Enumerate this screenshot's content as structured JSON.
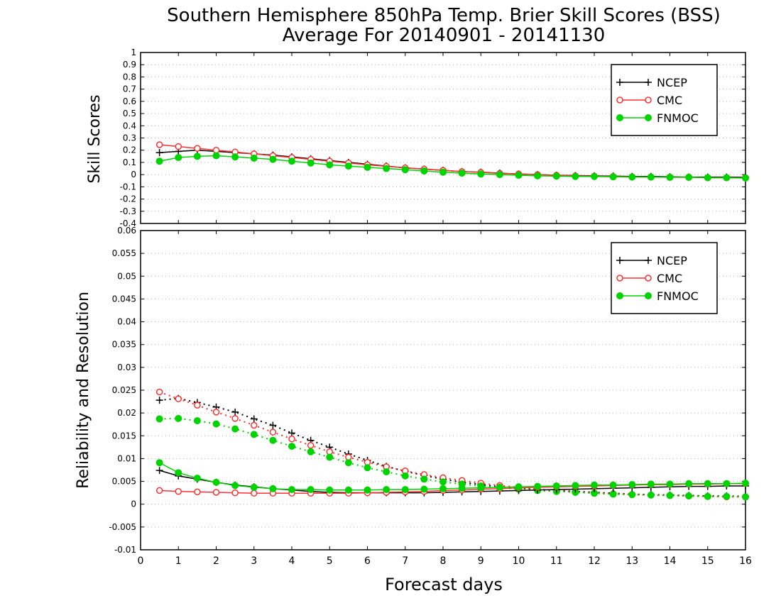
{
  "title_line1": "Southern Hemisphere 850hPa Temp. Brier Skill Scores (BSS)",
  "title_line2": "Average For 20140901 - 20141130",
  "xlabel": "Forecast days",
  "colors": {
    "NCEP": "#000000",
    "CMC": "#ff3030",
    "FNMOC": "#00d400"
  },
  "chart_data": [
    {
      "type": "line",
      "ylabel": "Skill Scores",
      "xlim": [
        0,
        16
      ],
      "ylim": [
        -0.4,
        1
      ],
      "x_ticks": [
        "0",
        "1",
        "2",
        "3",
        "4",
        "5",
        "6",
        "7",
        "8",
        "9",
        "10",
        "11",
        "12",
        "13",
        "14",
        "15",
        "16"
      ],
      "y_ticks": [
        "-0.4",
        "-0.3",
        "-0.2",
        "-0.1",
        "0",
        "0.1",
        "0.2",
        "0.3",
        "0.4",
        "0.5",
        "0.6",
        "0.7",
        "0.8",
        "0.9",
        "1"
      ],
      "grid": true,
      "legend": [
        "NCEP",
        "CMC",
        "FNMOC"
      ],
      "legend_position": "top-right",
      "x": [
        0.5,
        1,
        1.5,
        2,
        2.5,
        3,
        3.5,
        4,
        4.5,
        5,
        5.5,
        6,
        6.5,
        7,
        7.5,
        8,
        8.5,
        9,
        9.5,
        10,
        10.5,
        11,
        11.5,
        12,
        12.5,
        13,
        13.5,
        14,
        14.5,
        15,
        15.5,
        16
      ],
      "series": [
        {
          "name": "NCEP",
          "marker": "plus",
          "style": "solid",
          "values": [
            0.18,
            0.19,
            0.2,
            0.19,
            0.18,
            0.17,
            0.16,
            0.145,
            0.13,
            0.115,
            0.1,
            0.085,
            0.07,
            0.055,
            0.045,
            0.035,
            0.025,
            0.02,
            0.012,
            0.005,
            0.0,
            -0.005,
            -0.008,
            -0.01,
            -0.012,
            -0.015,
            -0.015,
            -0.018,
            -0.02,
            -0.02,
            -0.02,
            -0.022
          ]
        },
        {
          "name": "CMC",
          "marker": "open-circle",
          "style": "solid",
          "values": [
            0.245,
            0.23,
            0.215,
            0.2,
            0.185,
            0.17,
            0.155,
            0.14,
            0.125,
            0.11,
            0.095,
            0.08,
            0.068,
            0.055,
            0.045,
            0.035,
            0.025,
            0.018,
            0.01,
            0.005,
            0.0,
            -0.005,
            -0.01,
            -0.012,
            -0.015,
            -0.018,
            -0.02,
            -0.022,
            -0.022,
            -0.025,
            -0.025,
            -0.025
          ]
        },
        {
          "name": "FNMOC",
          "marker": "filled-circle",
          "style": "solid",
          "values": [
            0.11,
            0.14,
            0.15,
            0.155,
            0.145,
            0.135,
            0.125,
            0.11,
            0.095,
            0.08,
            0.07,
            0.06,
            0.05,
            0.04,
            0.03,
            0.02,
            0.012,
            0.005,
            0.0,
            -0.005,
            -0.01,
            -0.012,
            -0.015,
            -0.015,
            -0.018,
            -0.02,
            -0.02,
            -0.022,
            -0.022,
            -0.025,
            -0.025,
            -0.028
          ]
        }
      ]
    },
    {
      "type": "line",
      "ylabel": "Reliability and Resolution",
      "xlim": [
        0,
        16
      ],
      "ylim": [
        -0.01,
        0.06
      ],
      "x_ticks": [
        "0",
        "1",
        "2",
        "3",
        "4",
        "5",
        "6",
        "7",
        "8",
        "9",
        "10",
        "11",
        "12",
        "13",
        "14",
        "15",
        "16"
      ],
      "y_ticks": [
        "-0.01",
        "-0.005",
        "0",
        "0.005",
        "0.01",
        "0.015",
        "0.02",
        "0.025",
        "0.03",
        "0.035",
        "0.04",
        "0.045",
        "0.05",
        "0.055",
        "0.06"
      ],
      "grid": true,
      "legend": [
        "NCEP",
        "CMC",
        "FNMOC"
      ],
      "legend_position": "top-right",
      "x": [
        0.5,
        1,
        1.5,
        2,
        2.5,
        3,
        3.5,
        4,
        4.5,
        5,
        5.5,
        6,
        6.5,
        7,
        7.5,
        8,
        8.5,
        9,
        9.5,
        10,
        10.5,
        11,
        11.5,
        12,
        12.5,
        13,
        13.5,
        14,
        14.5,
        15,
        15.5,
        16
      ],
      "series": [
        {
          "name": "NCEP",
          "role": "resolution",
          "marker": "plus",
          "style": "dotted",
          "values": [
            0.0228,
            0.0232,
            0.0223,
            0.0213,
            0.0202,
            0.0187,
            0.0173,
            0.0156,
            0.014,
            0.0125,
            0.011,
            0.0096,
            0.0083,
            0.0072,
            0.0063,
            0.0055,
            0.0048,
            0.0043,
            0.0038,
            0.0035,
            0.0032,
            0.003,
            0.0028,
            0.0026,
            0.0024,
            0.0022,
            0.0021,
            0.002,
            0.0019,
            0.0018,
            0.0018,
            0.0017
          ]
        },
        {
          "name": "CMC",
          "role": "resolution",
          "marker": "open-circle",
          "style": "dotted",
          "values": [
            0.0246,
            0.0231,
            0.0217,
            0.0202,
            0.0188,
            0.0173,
            0.0158,
            0.0143,
            0.0129,
            0.0115,
            0.0103,
            0.0092,
            0.0082,
            0.0073,
            0.0065,
            0.0058,
            0.0052,
            0.0046,
            0.0041,
            0.0037,
            0.0033,
            0.003,
            0.0027,
            0.0025,
            0.0023,
            0.0021,
            0.002,
            0.0019,
            0.0018,
            0.0017,
            0.0016,
            0.0016
          ]
        },
        {
          "name": "FNMOC",
          "role": "resolution",
          "marker": "filled-circle",
          "style": "dotted",
          "values": [
            0.0187,
            0.0188,
            0.0183,
            0.0176,
            0.0165,
            0.0153,
            0.014,
            0.0127,
            0.0115,
            0.0103,
            0.0091,
            0.008,
            0.0071,
            0.0062,
            0.0055,
            0.0049,
            0.0044,
            0.004,
            0.0036,
            0.0033,
            0.003,
            0.0028,
            0.0026,
            0.0024,
            0.0022,
            0.0021,
            0.002,
            0.0019,
            0.0018,
            0.0017,
            0.0017,
            0.0016
          ]
        },
        {
          "name": "NCEP",
          "role": "reliability",
          "marker": "plus",
          "style": "solid",
          "values": [
            0.0074,
            0.0062,
            0.0055,
            0.0048,
            0.0042,
            0.0038,
            0.0034,
            0.0031,
            0.0028,
            0.0026,
            0.0025,
            0.0025,
            0.0025,
            0.0025,
            0.0025,
            0.0026,
            0.0027,
            0.0028,
            0.0029,
            0.003,
            0.0031,
            0.0032,
            0.0033,
            0.0034,
            0.0035,
            0.0036,
            0.0037,
            0.0038,
            0.0039,
            0.0039,
            0.004,
            0.004
          ]
        },
        {
          "name": "CMC",
          "role": "reliability",
          "marker": "open-circle",
          "style": "solid",
          "values": [
            0.003,
            0.0028,
            0.0027,
            0.0026,
            0.0025,
            0.0024,
            0.0024,
            0.0024,
            0.0024,
            0.0024,
            0.0024,
            0.0025,
            0.0026,
            0.0027,
            0.0028,
            0.003,
            0.0031,
            0.0033,
            0.0034,
            0.0036,
            0.0037,
            0.0038,
            0.0039,
            0.004,
            0.0041,
            0.0042,
            0.0043,
            0.0043,
            0.0044,
            0.0044,
            0.0045,
            0.0045
          ]
        },
        {
          "name": "FNMOC",
          "role": "reliability",
          "marker": "filled-circle",
          "style": "solid",
          "values": [
            0.0091,
            0.0069,
            0.0057,
            0.0048,
            0.0041,
            0.0037,
            0.0034,
            0.0032,
            0.0032,
            0.0031,
            0.0031,
            0.0031,
            0.0032,
            0.0032,
            0.0033,
            0.0034,
            0.0035,
            0.0036,
            0.0037,
            0.0038,
            0.0039,
            0.004,
            0.0041,
            0.0042,
            0.0042,
            0.0043,
            0.0044,
            0.0044,
            0.0045,
            0.0045,
            0.0045,
            0.0046
          ]
        }
      ]
    }
  ]
}
